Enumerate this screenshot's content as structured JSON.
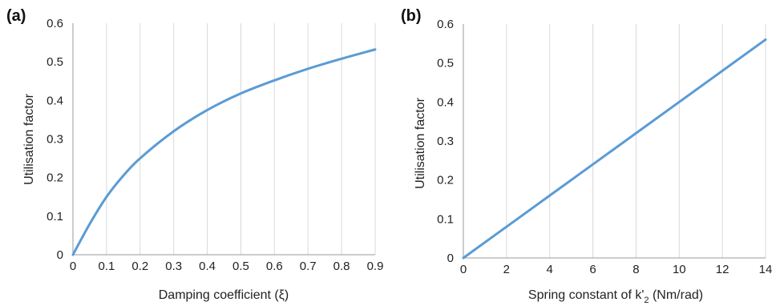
{
  "chart_data": [
    {
      "type": "line",
      "panel_label": "(a)",
      "xlabel": "Damping coefficient (ξ)",
      "ylabel": "Utilisation factor",
      "xlim": [
        0,
        0.9
      ],
      "ylim": [
        0,
        0.6
      ],
      "x_ticks": [
        "0",
        "0.1",
        "0.2",
        "0.3",
        "0.4",
        "0.5",
        "0.6",
        "0.7",
        "0.8",
        "0.9"
      ],
      "y_ticks": [
        "0",
        "0.1",
        "0.2",
        "0.3",
        "0.4",
        "0.5",
        "0.6"
      ],
      "grid": "vertical",
      "series": [
        {
          "color": "#5b9bd5",
          "x": [
            0,
            0.05,
            0.1,
            0.15,
            0.2,
            0.3,
            0.4,
            0.5,
            0.6,
            0.7,
            0.8,
            0.9
          ],
          "y": [
            0,
            0.08,
            0.15,
            0.205,
            0.25,
            0.32,
            0.375,
            0.418,
            0.452,
            0.482,
            0.508,
            0.532
          ]
        }
      ]
    },
    {
      "type": "line",
      "panel_label": "(b)",
      "xlabel": "Spring constant of k'",
      "xlabel_subscript": "2",
      "xlabel_suffix": " (Nm/rad)",
      "ylabel": "Utilisation factor",
      "xlim": [
        0,
        14
      ],
      "ylim": [
        0,
        0.6
      ],
      "x_ticks": [
        "0",
        "2",
        "4",
        "6",
        "8",
        "10",
        "12",
        "14"
      ],
      "y_ticks": [
        "0",
        "0.1",
        "0.2",
        "0.3",
        "0.4",
        "0.5",
        "0.6"
      ],
      "grid": "vertical",
      "series": [
        {
          "color": "#5b9bd5",
          "x": [
            0,
            2,
            4,
            6,
            8,
            10,
            12,
            14
          ],
          "y": [
            0,
            0.08,
            0.16,
            0.24,
            0.32,
            0.4,
            0.48,
            0.56
          ]
        }
      ]
    }
  ]
}
